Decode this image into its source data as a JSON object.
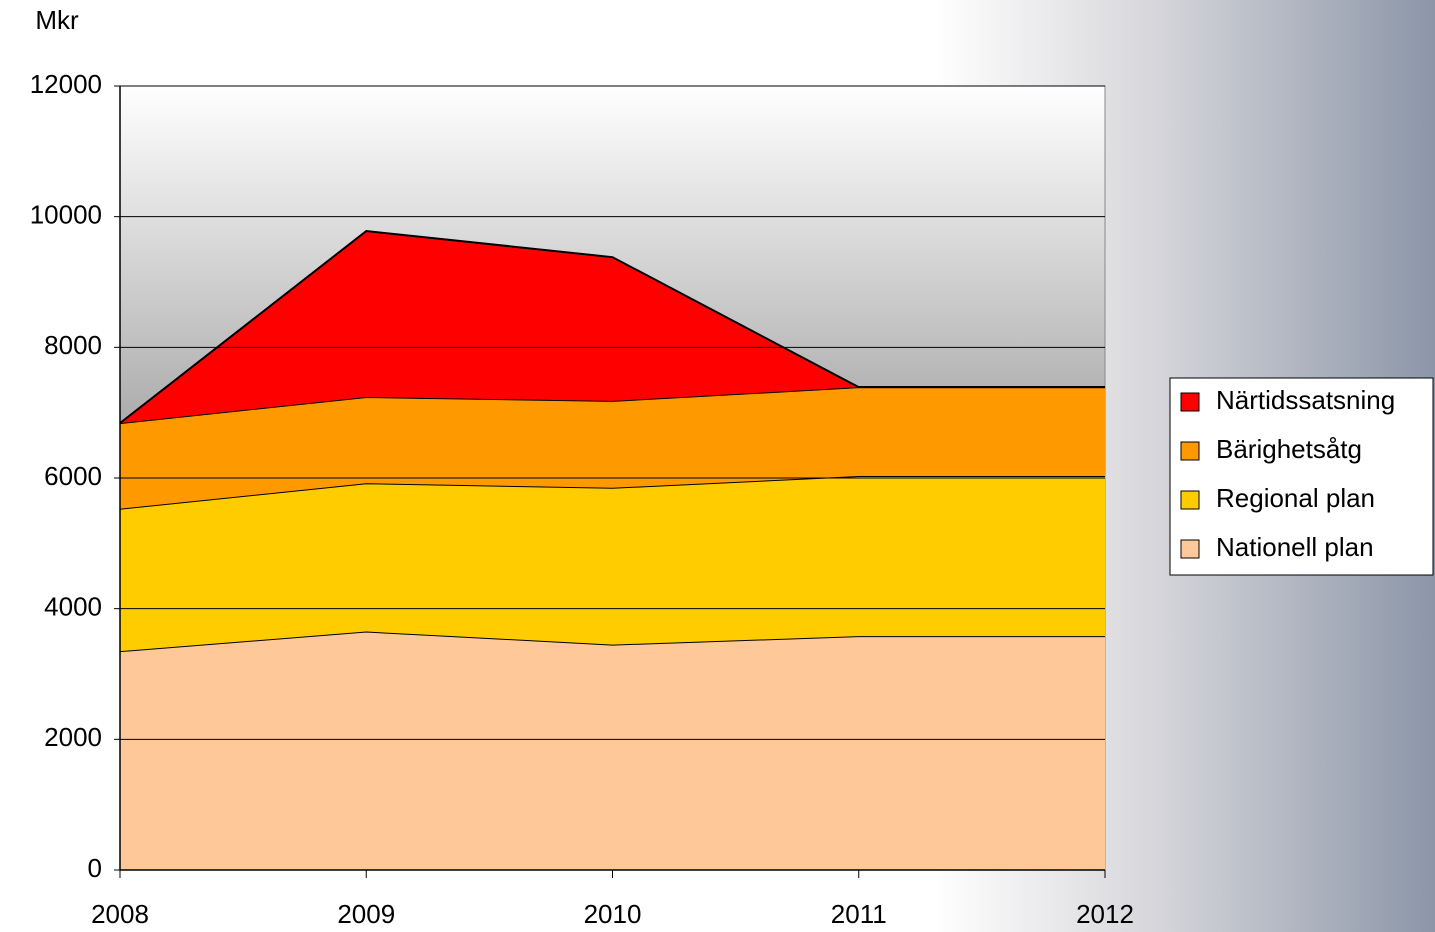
{
  "chart_data": {
    "type": "stacked_area",
    "y_label": "Mkr",
    "x": [
      2008,
      2009,
      2010,
      2011,
      2012
    ],
    "xlim": [
      2008,
      2012
    ],
    "xticks": [
      2008,
      2009,
      2010,
      2011,
      2012
    ],
    "ylim": [
      0,
      12000
    ],
    "yticks": [
      0,
      2000,
      4000,
      6000,
      8000,
      10000,
      12000
    ],
    "grid": true,
    "legend": "right",
    "series": [
      {
        "name": "Nationell plan",
        "color": "#ffc899",
        "values": [
          3350,
          3650,
          3450,
          3580,
          3580
        ]
      },
      {
        "name": "Regional plan",
        "color": "#ffcc00",
        "values": [
          2180,
          2270,
          2400,
          2450,
          2450
        ]
      },
      {
        "name": "Bärighetsåtg",
        "color": "#ff9900",
        "values": [
          1310,
          1320,
          1330,
          1360,
          1360
        ]
      },
      {
        "name": "Närtidssatsning",
        "color": "#ff0000",
        "values": [
          0,
          2540,
          2200,
          0,
          0
        ]
      }
    ]
  }
}
